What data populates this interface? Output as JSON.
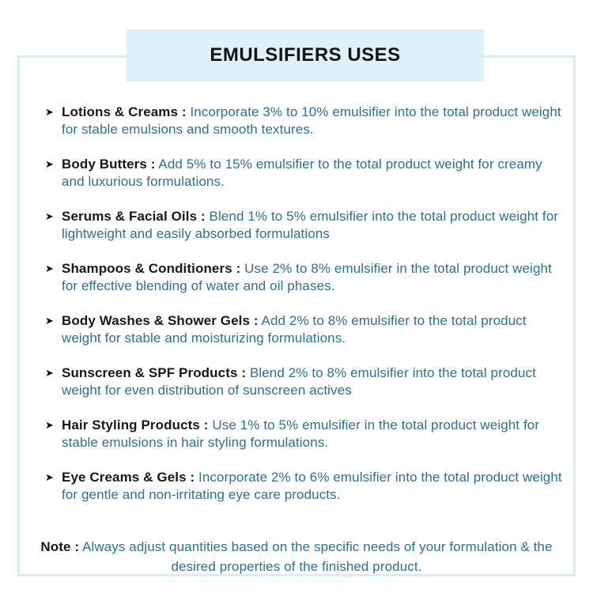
{
  "title": "EMULSIFIERS USES",
  "bullet_icon": "➤",
  "colors": {
    "banner_background": "#def0f8",
    "frame_border": "#d9edf8",
    "heading_text": "#141414",
    "label_text": "#16191c",
    "body_text": "#306f8e"
  },
  "items": [
    {
      "label": "Lotions & Creams :",
      "description": "Incorporate 3% to 10% emulsifier into the total product weight for stable emulsions and smooth textures."
    },
    {
      "label": "Body Butters :",
      "description": "Add 5% to 15% emulsifier to the total product weight for creamy and luxurious formulations."
    },
    {
      "label": "Serums & Facial Oils :",
      "description": "Blend 1% to 5% emulsifier into the total product weight for lightweight and easily absorbed formulations"
    },
    {
      "label": "Shampoos & Conditioners :",
      "description": "Use 2% to 8% emulsifier in the total product weight for effective blending of water and oil phases."
    },
    {
      "label": "Body Washes & Shower Gels :",
      "description": "Add 2% to 8% emulsifier to the total product weight for stable and moisturizing formulations."
    },
    {
      "label": "Sunscreen & SPF Products :",
      "description": "Blend 2% to 8% emulsifier into the total product weight for even distribution of sunscreen actives"
    },
    {
      "label": "Hair Styling Products :",
      "description": "Use 1% to 5% emulsifier in the total product weight for stable emulsions in hair styling formulations."
    },
    {
      "label": "Eye Creams & Gels :",
      "description": "Incorporate 2% to 6% emulsifier into the total product weight for gentle and non-irritating eye care products."
    }
  ],
  "note": {
    "label": "Note :",
    "text": "Always adjust quantities based on the specific needs of your formulation & the desired properties of the finished product."
  }
}
